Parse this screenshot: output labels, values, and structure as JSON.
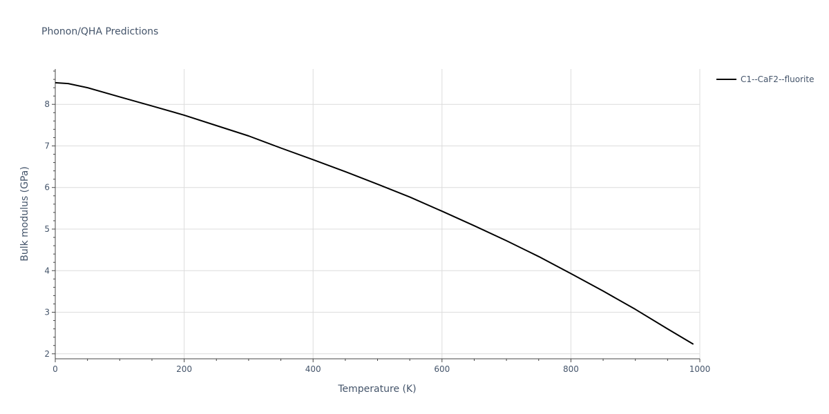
{
  "chart_data": {
    "type": "line",
    "title": "Phonon/QHA Predictions",
    "xlabel": "Temperature (K)",
    "ylabel": "Bulk modulus (GPa)",
    "xlim": [
      0,
      1000
    ],
    "ylim": [
      1.88,
      8.85
    ],
    "xticks": [
      0,
      200,
      400,
      600,
      800,
      1000
    ],
    "yticks": [
      2,
      3,
      4,
      5,
      6,
      7,
      8
    ],
    "grid": true,
    "legend_position": "top-right",
    "series": [
      {
        "name": "C1--CaF2--fluorite",
        "color": "#000000",
        "x": [
          0,
          20,
          50,
          100,
          150,
          200,
          250,
          300,
          350,
          400,
          450,
          500,
          550,
          600,
          650,
          700,
          750,
          800,
          850,
          900,
          950,
          990
        ],
        "y": [
          8.52,
          8.5,
          8.4,
          8.18,
          7.96,
          7.74,
          7.49,
          7.24,
          6.95,
          6.67,
          6.38,
          6.08,
          5.77,
          5.43,
          5.08,
          4.72,
          4.34,
          3.93,
          3.51,
          3.07,
          2.6,
          2.23
        ]
      }
    ]
  }
}
